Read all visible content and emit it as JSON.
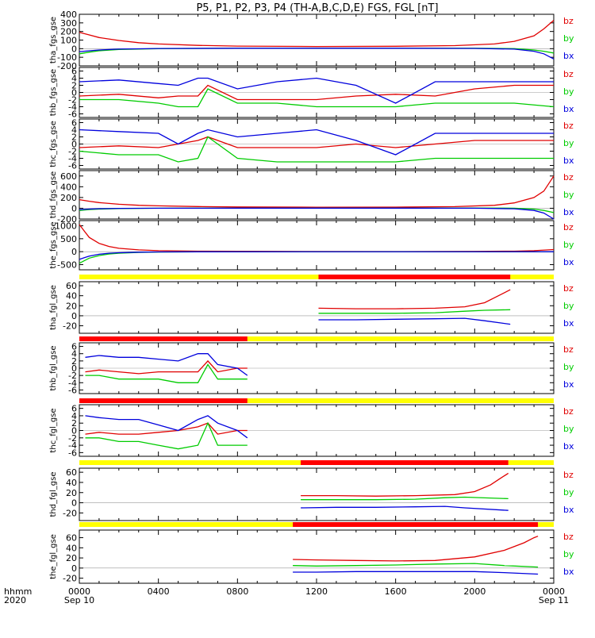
{
  "title": "P5, P1, P2, P3, P4 (TH-A,B,C,D,E) FGS, FGL [nT]",
  "x_axis": {
    "prefix_lines": [
      "hhmm",
      "2020"
    ],
    "ticks": [
      {
        "hour": 0,
        "label": "0000",
        "sub": "Sep 10"
      },
      {
        "hour": 4,
        "label": "0400",
        "sub": ""
      },
      {
        "hour": 8,
        "label": "0800",
        "sub": ""
      },
      {
        "hour": 12,
        "label": "1200",
        "sub": ""
      },
      {
        "hour": 16,
        "label": "1600",
        "sub": ""
      },
      {
        "hour": 20,
        "label": "2000",
        "sub": ""
      },
      {
        "hour": 24,
        "label": "0000",
        "sub": "Sep 11"
      }
    ],
    "range_hours": [
      0,
      24
    ]
  },
  "legend": [
    {
      "name": "bz",
      "color": "#e00000"
    },
    {
      "name": "by",
      "color": "#00cc00"
    },
    {
      "name": "bx",
      "color": "#0000dd"
    }
  ],
  "status_colors": {
    "available": "#ff0000",
    "gap": "#ffff00"
  },
  "chart_data": [
    {
      "type": "line",
      "panel": "tha_fgs_gse",
      "ylabel": "tha_fgs_gse",
      "ylim": [
        -200,
        400
      ],
      "yticks": [
        -200,
        -100,
        0,
        100,
        200,
        300,
        400
      ],
      "series": [
        {
          "name": "bz",
          "x": [
            0,
            0.5,
            1,
            2,
            3,
            4,
            6,
            8,
            12,
            16,
            19,
            21,
            22,
            23,
            23.5,
            24
          ],
          "y": [
            190,
            160,
            130,
            95,
            70,
            55,
            38,
            30,
            25,
            28,
            35,
            55,
            85,
            150,
            230,
            330
          ]
        },
        {
          "name": "by",
          "x": [
            0,
            0.5,
            1,
            2,
            4,
            8,
            12,
            16,
            20,
            22,
            23,
            23.5,
            24
          ],
          "y": [
            -60,
            -40,
            -25,
            -10,
            0,
            5,
            5,
            5,
            5,
            0,
            -15,
            -30,
            -50
          ]
        },
        {
          "name": "bx",
          "x": [
            0,
            0.5,
            1,
            2,
            4,
            8,
            12,
            16,
            20,
            22,
            23,
            23.5,
            24
          ],
          "y": [
            -35,
            -25,
            -15,
            -5,
            2,
            5,
            5,
            5,
            3,
            -5,
            -30,
            -60,
            -120
          ]
        }
      ]
    },
    {
      "type": "line",
      "panel": "thb_fgs_gse",
      "ylabel": "thb_fgs_gse",
      "ylim": [
        -7,
        7
      ],
      "yticks": [
        -6,
        -4,
        -2,
        0,
        2,
        4,
        6
      ],
      "series": [
        {
          "name": "bz",
          "x": [
            0,
            2,
            4,
            5,
            6,
            6.5,
            8,
            10,
            12,
            14,
            16,
            18,
            20,
            22,
            24
          ],
          "y": [
            -1,
            -0.5,
            -1.5,
            -1,
            -1,
            2,
            -2,
            -2,
            -2,
            -1,
            -0.5,
            -1,
            1,
            2,
            2
          ]
        },
        {
          "name": "by",
          "x": [
            0,
            2,
            4,
            5,
            6,
            6.5,
            8,
            10,
            12,
            14,
            16,
            18,
            20,
            22,
            24
          ],
          "y": [
            -2,
            -2,
            -3,
            -4,
            -4,
            1,
            -3,
            -3,
            -4,
            -4,
            -4,
            -3,
            -3,
            -3,
            -4
          ]
        },
        {
          "name": "bx",
          "x": [
            0,
            2,
            4,
            5,
            6,
            6.5,
            8,
            10,
            12,
            14,
            16,
            18,
            20,
            22,
            24
          ],
          "y": [
            3,
            3.5,
            2.5,
            2,
            4,
            4,
            1,
            3,
            4,
            2,
            -3,
            3,
            3,
            3,
            3
          ]
        }
      ]
    },
    {
      "type": "line",
      "panel": "thc_fgs_gse",
      "ylabel": "thc_fgs_gse",
      "ylim": [
        -7,
        7
      ],
      "yticks": [
        -6,
        -4,
        -2,
        0,
        2,
        4,
        6
      ],
      "series": [
        {
          "name": "bz",
          "x": [
            0,
            2,
            4,
            5,
            6,
            6.5,
            8,
            10,
            12,
            14,
            16,
            18,
            20,
            22,
            24
          ],
          "y": [
            -1,
            -0.5,
            -1,
            0,
            1,
            2,
            -1,
            -1,
            -1,
            0,
            -1,
            0,
            1,
            1,
            1
          ]
        },
        {
          "name": "by",
          "x": [
            0,
            2,
            4,
            5,
            6,
            6.5,
            8,
            10,
            12,
            14,
            16,
            18,
            20,
            22,
            24
          ],
          "y": [
            -2,
            -3,
            -3,
            -5,
            -4,
            2,
            -4,
            -5,
            -5,
            -5,
            -5,
            -4,
            -4,
            -4,
            -4
          ]
        },
        {
          "name": "bx",
          "x": [
            0,
            2,
            4,
            5,
            6,
            6.5,
            8,
            10,
            12,
            14,
            16,
            18,
            20,
            22,
            24
          ],
          "y": [
            4,
            3.5,
            3,
            0,
            3,
            4,
            2,
            3,
            4,
            1,
            -3,
            3,
            3,
            3,
            3
          ]
        }
      ]
    },
    {
      "type": "line",
      "panel": "thd_fgs_gse",
      "ylabel": "thd_fgs_gse",
      "ylim": [
        -200,
        700
      ],
      "yticks": [
        -200,
        0,
        200,
        400,
        600
      ],
      "series": [
        {
          "name": "bz",
          "x": [
            0,
            0.5,
            1,
            2,
            3,
            4,
            6,
            8,
            12,
            16,
            19,
            21,
            22,
            23,
            23.5,
            24
          ],
          "y": [
            160,
            130,
            105,
            75,
            55,
            45,
            32,
            25,
            20,
            22,
            30,
            55,
            100,
            200,
            320,
            600
          ]
        },
        {
          "name": "by",
          "x": [
            0,
            0.5,
            1,
            2,
            4,
            8,
            12,
            16,
            20,
            22,
            23,
            23.5,
            24
          ],
          "y": [
            -40,
            -25,
            -15,
            -5,
            0,
            3,
            3,
            3,
            5,
            0,
            -15,
            -40,
            -80
          ]
        },
        {
          "name": "bx",
          "x": [
            0,
            0.5,
            1,
            2,
            4,
            8,
            12,
            16,
            20,
            22,
            23,
            23.5,
            24
          ],
          "y": [
            -25,
            -15,
            -8,
            -3,
            0,
            2,
            2,
            2,
            0,
            -10,
            -40,
            -90,
            -200
          ]
        }
      ]
    },
    {
      "type": "line",
      "panel": "the_fgs_gse",
      "ylabel": "the_fgs_gse",
      "ylim": [
        -700,
        1200
      ],
      "yticks": [
        -500,
        0,
        500,
        1000
      ],
      "series": [
        {
          "name": "bz",
          "x": [
            0,
            0.25,
            0.5,
            1,
            1.5,
            2,
            3,
            4,
            6,
            10,
            16,
            20,
            22,
            23,
            24
          ],
          "y": [
            1050,
            800,
            550,
            320,
            200,
            130,
            70,
            40,
            20,
            10,
            5,
            10,
            20,
            40,
            80
          ]
        },
        {
          "name": "by",
          "x": [
            0,
            0.25,
            0.5,
            1,
            1.5,
            2,
            3,
            4,
            6,
            24
          ],
          "y": [
            -450,
            -350,
            -250,
            -150,
            -90,
            -60,
            -30,
            -15,
            -5,
            0
          ]
        },
        {
          "name": "bx",
          "x": [
            0,
            0.25,
            0.5,
            1,
            1.5,
            2,
            3,
            4,
            6,
            24
          ],
          "y": [
            -300,
            -230,
            -170,
            -100,
            -60,
            -40,
            -20,
            -10,
            -3,
            0
          ]
        }
      ]
    },
    {
      "type": "line",
      "panel": "tha_fgl_gse",
      "ylabel": "tha_fgl_gse",
      "ylim": [
        -35,
        68
      ],
      "yticks": [
        -20,
        0,
        20,
        40,
        60
      ],
      "status_red": [
        12.1,
        21.8
      ],
      "series": [
        {
          "name": "bz",
          "x": [
            12.1,
            14,
            16,
            18,
            19.5,
            20.5,
            21,
            21.5,
            21.8
          ],
          "y": [
            15,
            14,
            14,
            15,
            18,
            26,
            36,
            46,
            52
          ]
        },
        {
          "name": "by",
          "x": [
            12.1,
            14,
            16,
            18,
            19.5,
            20.5,
            21.8
          ],
          "y": [
            5,
            5,
            5,
            6,
            9,
            11,
            12
          ]
        },
        {
          "name": "bx",
          "x": [
            12.1,
            14,
            16,
            18,
            19.5,
            20.5,
            21.8
          ],
          "y": [
            -8,
            -8,
            -7,
            -6,
            -5,
            -10,
            -17
          ]
        }
      ]
    },
    {
      "type": "line",
      "panel": "thb_fgl_gse",
      "ylabel": "thb_fgl_gse",
      "ylim": [
        -7,
        7
      ],
      "yticks": [
        -6,
        -4,
        -2,
        0,
        2,
        4,
        6
      ],
      "status_red": [
        0,
        8.5
      ],
      "series": [
        {
          "name": "bz",
          "x": [
            0.3,
            1,
            2,
            3,
            4,
            5,
            6,
            6.5,
            7,
            8,
            8.5
          ],
          "y": [
            -1,
            -0.5,
            -1,
            -1.5,
            -1,
            -1,
            -1,
            2,
            -1,
            0,
            0
          ]
        },
        {
          "name": "by",
          "x": [
            0.3,
            1,
            2,
            3,
            4,
            5,
            6,
            6.5,
            7,
            8,
            8.5
          ],
          "y": [
            -2,
            -2,
            -3,
            -3,
            -3,
            -4,
            -4,
            1,
            -3,
            -3,
            -3
          ]
        },
        {
          "name": "bx",
          "x": [
            0.3,
            1,
            2,
            3,
            4,
            5,
            6,
            6.5,
            7,
            8,
            8.5
          ],
          "y": [
            3,
            3.5,
            3,
            3,
            2.5,
            2,
            4,
            4,
            1,
            0,
            -2
          ]
        }
      ]
    },
    {
      "type": "line",
      "panel": "thc_fgl_gse",
      "ylabel": "thc_fgl_gse",
      "ylim": [
        -7,
        7
      ],
      "yticks": [
        -6,
        -4,
        -2,
        0,
        2,
        4,
        6
      ],
      "status_red": [
        0,
        8.5
      ],
      "series": [
        {
          "name": "bz",
          "x": [
            0.3,
            1,
            2,
            3,
            4,
            5,
            6,
            6.5,
            7,
            8,
            8.5
          ],
          "y": [
            -1,
            -0.5,
            -1,
            -1,
            -0.5,
            0,
            1,
            2,
            -1,
            0,
            0
          ]
        },
        {
          "name": "by",
          "x": [
            0.3,
            1,
            2,
            3,
            4,
            5,
            6,
            6.5,
            7,
            8,
            8.5
          ],
          "y": [
            -2,
            -2,
            -3,
            -3,
            -4,
            -5,
            -4,
            2,
            -4,
            -4,
            -4
          ]
        },
        {
          "name": "bx",
          "x": [
            0.3,
            1,
            2,
            3,
            4,
            5,
            6,
            6.5,
            7,
            8,
            8.5
          ],
          "y": [
            4,
            3.5,
            3,
            3,
            1.5,
            0,
            3,
            4,
            2,
            0,
            -2
          ]
        }
      ]
    },
    {
      "type": "line",
      "panel": "thd_fgl_gse",
      "ylabel": "thd_fgl_gse",
      "ylim": [
        -35,
        68
      ],
      "yticks": [
        -20,
        0,
        20,
        40,
        60
      ],
      "status_red": [
        11.2,
        21.7
      ],
      "series": [
        {
          "name": "bz",
          "x": [
            11.2,
            13,
            15,
            17,
            19,
            20,
            20.8,
            21.3,
            21.7
          ],
          "y": [
            14,
            14,
            13,
            14,
            16,
            22,
            35,
            48,
            58
          ]
        },
        {
          "name": "by",
          "x": [
            11.2,
            13,
            15,
            17,
            18.5,
            19.5,
            21.7
          ],
          "y": [
            6,
            6,
            6,
            7,
            10,
            11,
            8
          ]
        },
        {
          "name": "bx",
          "x": [
            11.2,
            13,
            15,
            17,
            18.5,
            19.5,
            21.7
          ],
          "y": [
            -10,
            -9,
            -9,
            -8,
            -7,
            -10,
            -15
          ]
        }
      ]
    },
    {
      "type": "line",
      "panel": "the_fgl_gse",
      "ylabel": "the_fgl_gse",
      "ylim": [
        -30,
        75
      ],
      "yticks": [
        -20,
        0,
        20,
        40,
        60
      ],
      "status_red": [
        10.8,
        23.2
      ],
      "series": [
        {
          "name": "bz",
          "x": [
            10.8,
            12,
            14,
            16,
            18,
            20,
            21.5,
            22.5,
            23,
            23.2
          ],
          "y": [
            17,
            16,
            15,
            14,
            15,
            22,
            35,
            50,
            60,
            63
          ]
        },
        {
          "name": "by",
          "x": [
            10.8,
            12,
            14,
            16,
            18,
            20,
            21.5,
            23.2
          ],
          "y": [
            5,
            4,
            5,
            6,
            8,
            9,
            5,
            2
          ]
        },
        {
          "name": "bx",
          "x": [
            10.8,
            12,
            14,
            16,
            18,
            20,
            21.5,
            23.2
          ],
          "y": [
            -8,
            -8,
            -7,
            -7,
            -7,
            -7,
            -9,
            -12
          ]
        }
      ]
    }
  ]
}
